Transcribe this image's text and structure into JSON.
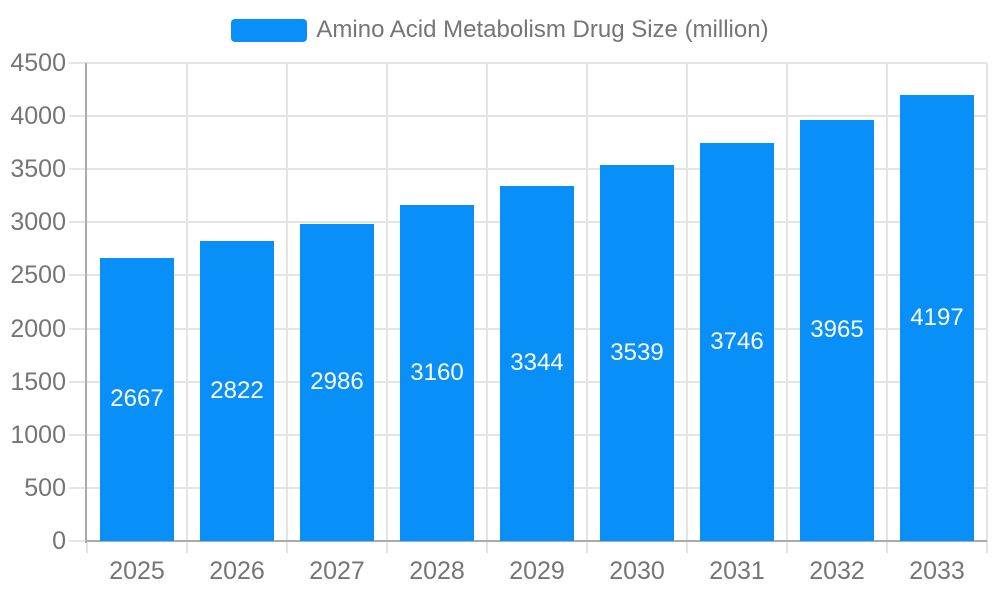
{
  "chart_data": {
    "type": "bar",
    "title": "Amino Acid Metabolism Drug Size (million)",
    "categories": [
      "2025",
      "2026",
      "2027",
      "2028",
      "2029",
      "2030",
      "2031",
      "2032",
      "2033"
    ],
    "values": [
      2667,
      2822,
      2986,
      3160,
      3344,
      3539,
      3746,
      3965,
      4197
    ],
    "xlabel": "",
    "ylabel": "",
    "ylim": [
      0,
      4500
    ],
    "ytick_step": 500,
    "grid": true,
    "legend_position": "top-center",
    "bar_labels_inside": true,
    "colors": {
      "bar": "#0890f8",
      "grid": "#e4e4e4",
      "axis": "#ababab",
      "text": "#757575",
      "bar_label": "#ffffff",
      "background": "#ffffff"
    }
  }
}
